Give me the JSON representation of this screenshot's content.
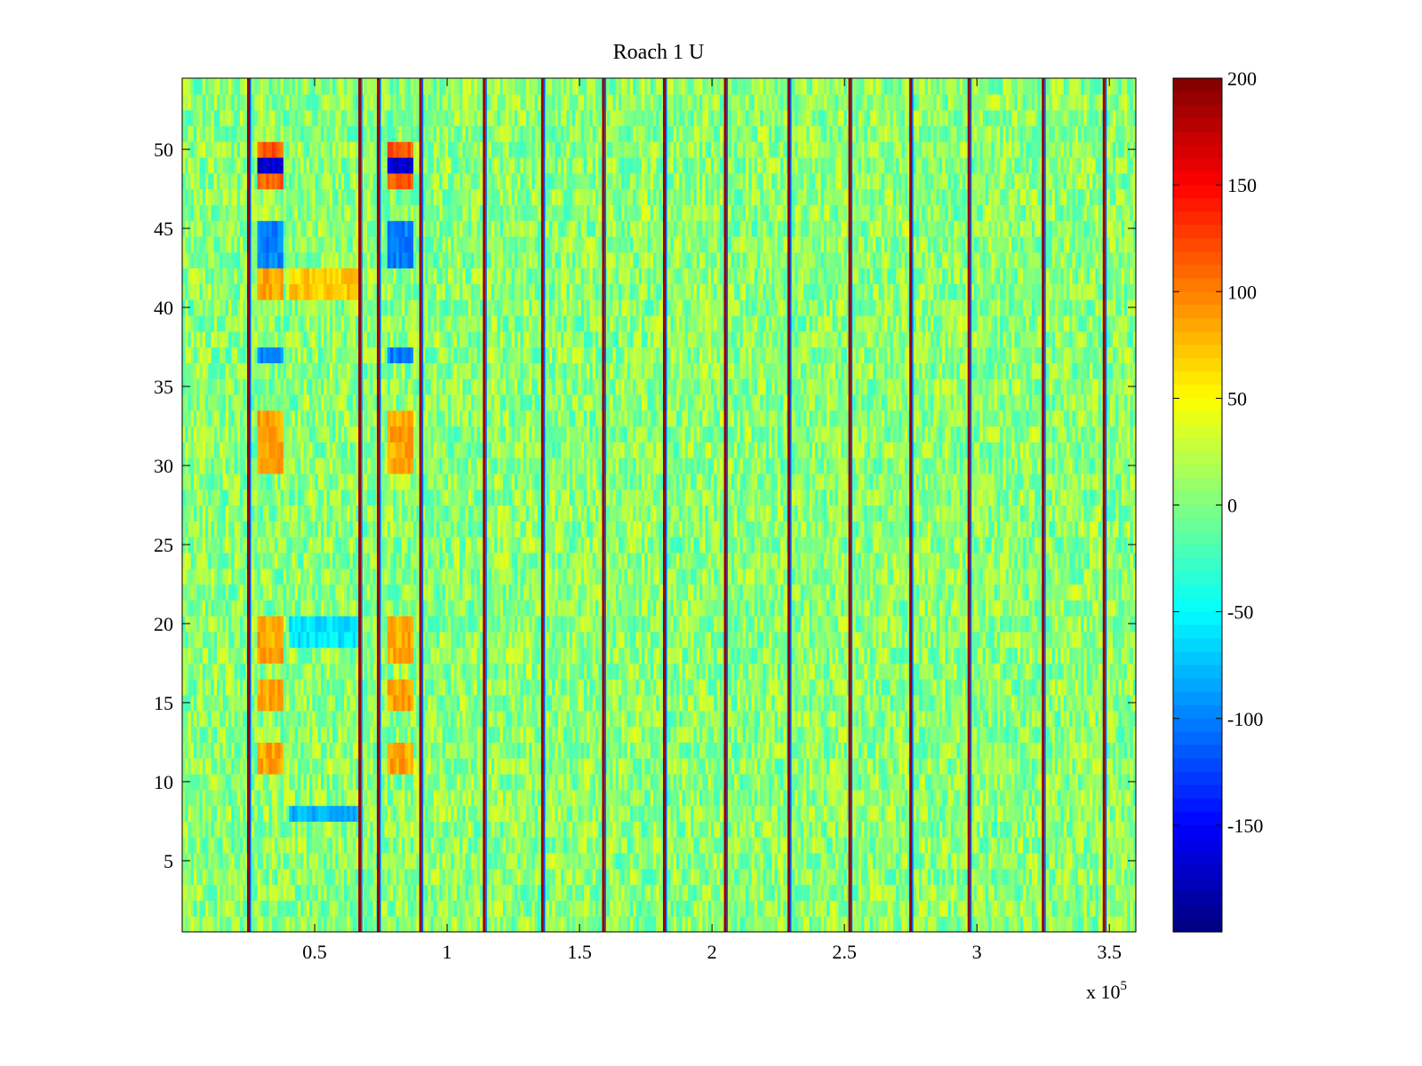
{
  "chart_data": {
    "type": "heatmap",
    "title": "Roach 1 U",
    "xlabel": "",
    "ylabel": "",
    "x_multiplier_label": "x 10",
    "x_multiplier_exponent": "5",
    "xlim": [
      0,
      3.6
    ],
    "ylim": [
      0.5,
      54.5
    ],
    "x_ticks": [
      0.5,
      1,
      1.5,
      2,
      2.5,
      3,
      3.5
    ],
    "x_tick_labels": [
      "0.5",
      "1",
      "1.5",
      "2",
      "2.5",
      "3",
      "3.5"
    ],
    "y_ticks": [
      5,
      10,
      15,
      20,
      25,
      30,
      35,
      40,
      45,
      50
    ],
    "y_tick_labels": [
      "5",
      "10",
      "15",
      "20",
      "25",
      "30",
      "35",
      "40",
      "45",
      "50"
    ],
    "rows": 54,
    "colormap": "jet",
    "colorbar": {
      "range": [
        -200,
        200
      ],
      "ticks": [
        200,
        150,
        100,
        50,
        0,
        -50,
        -100,
        -150
      ],
      "tick_labels": [
        "200",
        "150",
        "100",
        "50",
        "0",
        "-50",
        "-100",
        "-150"
      ]
    },
    "background_value_range": [
      -30,
      40
    ],
    "spike_columns_x": [
      0.25,
      0.67,
      0.74,
      0.9,
      1.14,
      1.36,
      1.59,
      1.82,
      2.05,
      2.29,
      2.52,
      2.75,
      2.97,
      3.25,
      3.48
    ],
    "spike_value": 190,
    "highlighted_regions": [
      {
        "x_start": 0.28,
        "x_end": 0.38,
        "rows": [
          11,
          12,
          15,
          16,
          18,
          19,
          20,
          30,
          31,
          32,
          33,
          41,
          42
        ],
        "value": 85
      },
      {
        "x_start": 0.77,
        "x_end": 0.87,
        "rows": [
          11,
          12,
          15,
          16,
          18,
          19,
          20,
          30,
          31,
          32,
          33
        ],
        "value": 85
      },
      {
        "x_start": 0.28,
        "x_end": 0.38,
        "rows": [
          37,
          43,
          44,
          45
        ],
        "value": -100
      },
      {
        "x_start": 0.77,
        "x_end": 0.87,
        "rows": [
          37,
          43,
          44,
          45
        ],
        "value": -100
      },
      {
        "x_start": 0.28,
        "x_end": 0.38,
        "rows": [
          49
        ],
        "value": -170
      },
      {
        "x_start": 0.77,
        "x_end": 0.87,
        "rows": [
          49
        ],
        "value": -170
      },
      {
        "x_start": 0.28,
        "x_end": 0.38,
        "rows": [
          48,
          50
        ],
        "value": 115
      },
      {
        "x_start": 0.77,
        "x_end": 0.87,
        "rows": [
          48,
          50
        ],
        "value": 115
      },
      {
        "x_start": 0.4,
        "x_end": 0.67,
        "rows": [
          41,
          42
        ],
        "value": 70
      },
      {
        "x_start": 0.4,
        "x_end": 0.67,
        "rows": [
          19,
          20
        ],
        "value": -60
      },
      {
        "x_start": 0.4,
        "x_end": 0.67,
        "rows": [
          8
        ],
        "value": -80
      }
    ]
  }
}
